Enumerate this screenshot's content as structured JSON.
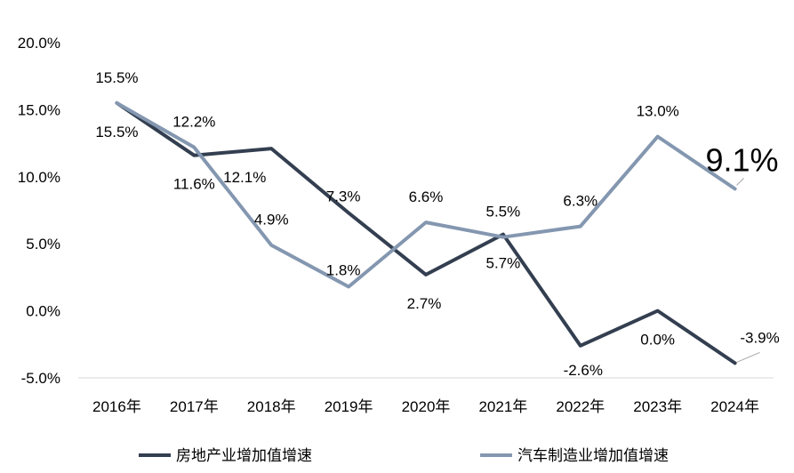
{
  "chart_data": {
    "type": "line",
    "categories": [
      "2016年",
      "2017年",
      "2018年",
      "2019年",
      "2020年",
      "2021年",
      "2022年",
      "2023年",
      "2024年"
    ],
    "series": [
      {
        "name": "房地产业增加值增速",
        "color": "#333f50",
        "values": [
          15.5,
          11.6,
          12.1,
          7.3,
          2.7,
          5.7,
          -2.6,
          0.0,
          -3.9
        ],
        "labels": [
          "15.5%",
          "11.6%",
          "12.1%",
          "7.3%",
          "2.7%",
          "5.7%",
          "-2.6%",
          "0.0%",
          "-3.9%"
        ]
      },
      {
        "name": "汽车制造业增加值增速",
        "color": "#8497b0",
        "values": [
          15.5,
          12.2,
          4.9,
          1.8,
          6.6,
          5.5,
          6.3,
          13.0,
          9.1
        ],
        "labels": [
          "15.5%",
          "12.2%",
          "4.9%",
          "1.8%",
          "6.6%",
          "5.5%",
          "6.3%",
          "13.0%",
          "9.1%"
        ]
      }
    ],
    "yticks": [
      "-5.0%",
      "0.0%",
      "5.0%",
      "10.0%",
      "15.0%",
      "20.0%"
    ],
    "ylim": [
      -5,
      20
    ],
    "grid": false,
    "legend_position": "bottom"
  }
}
